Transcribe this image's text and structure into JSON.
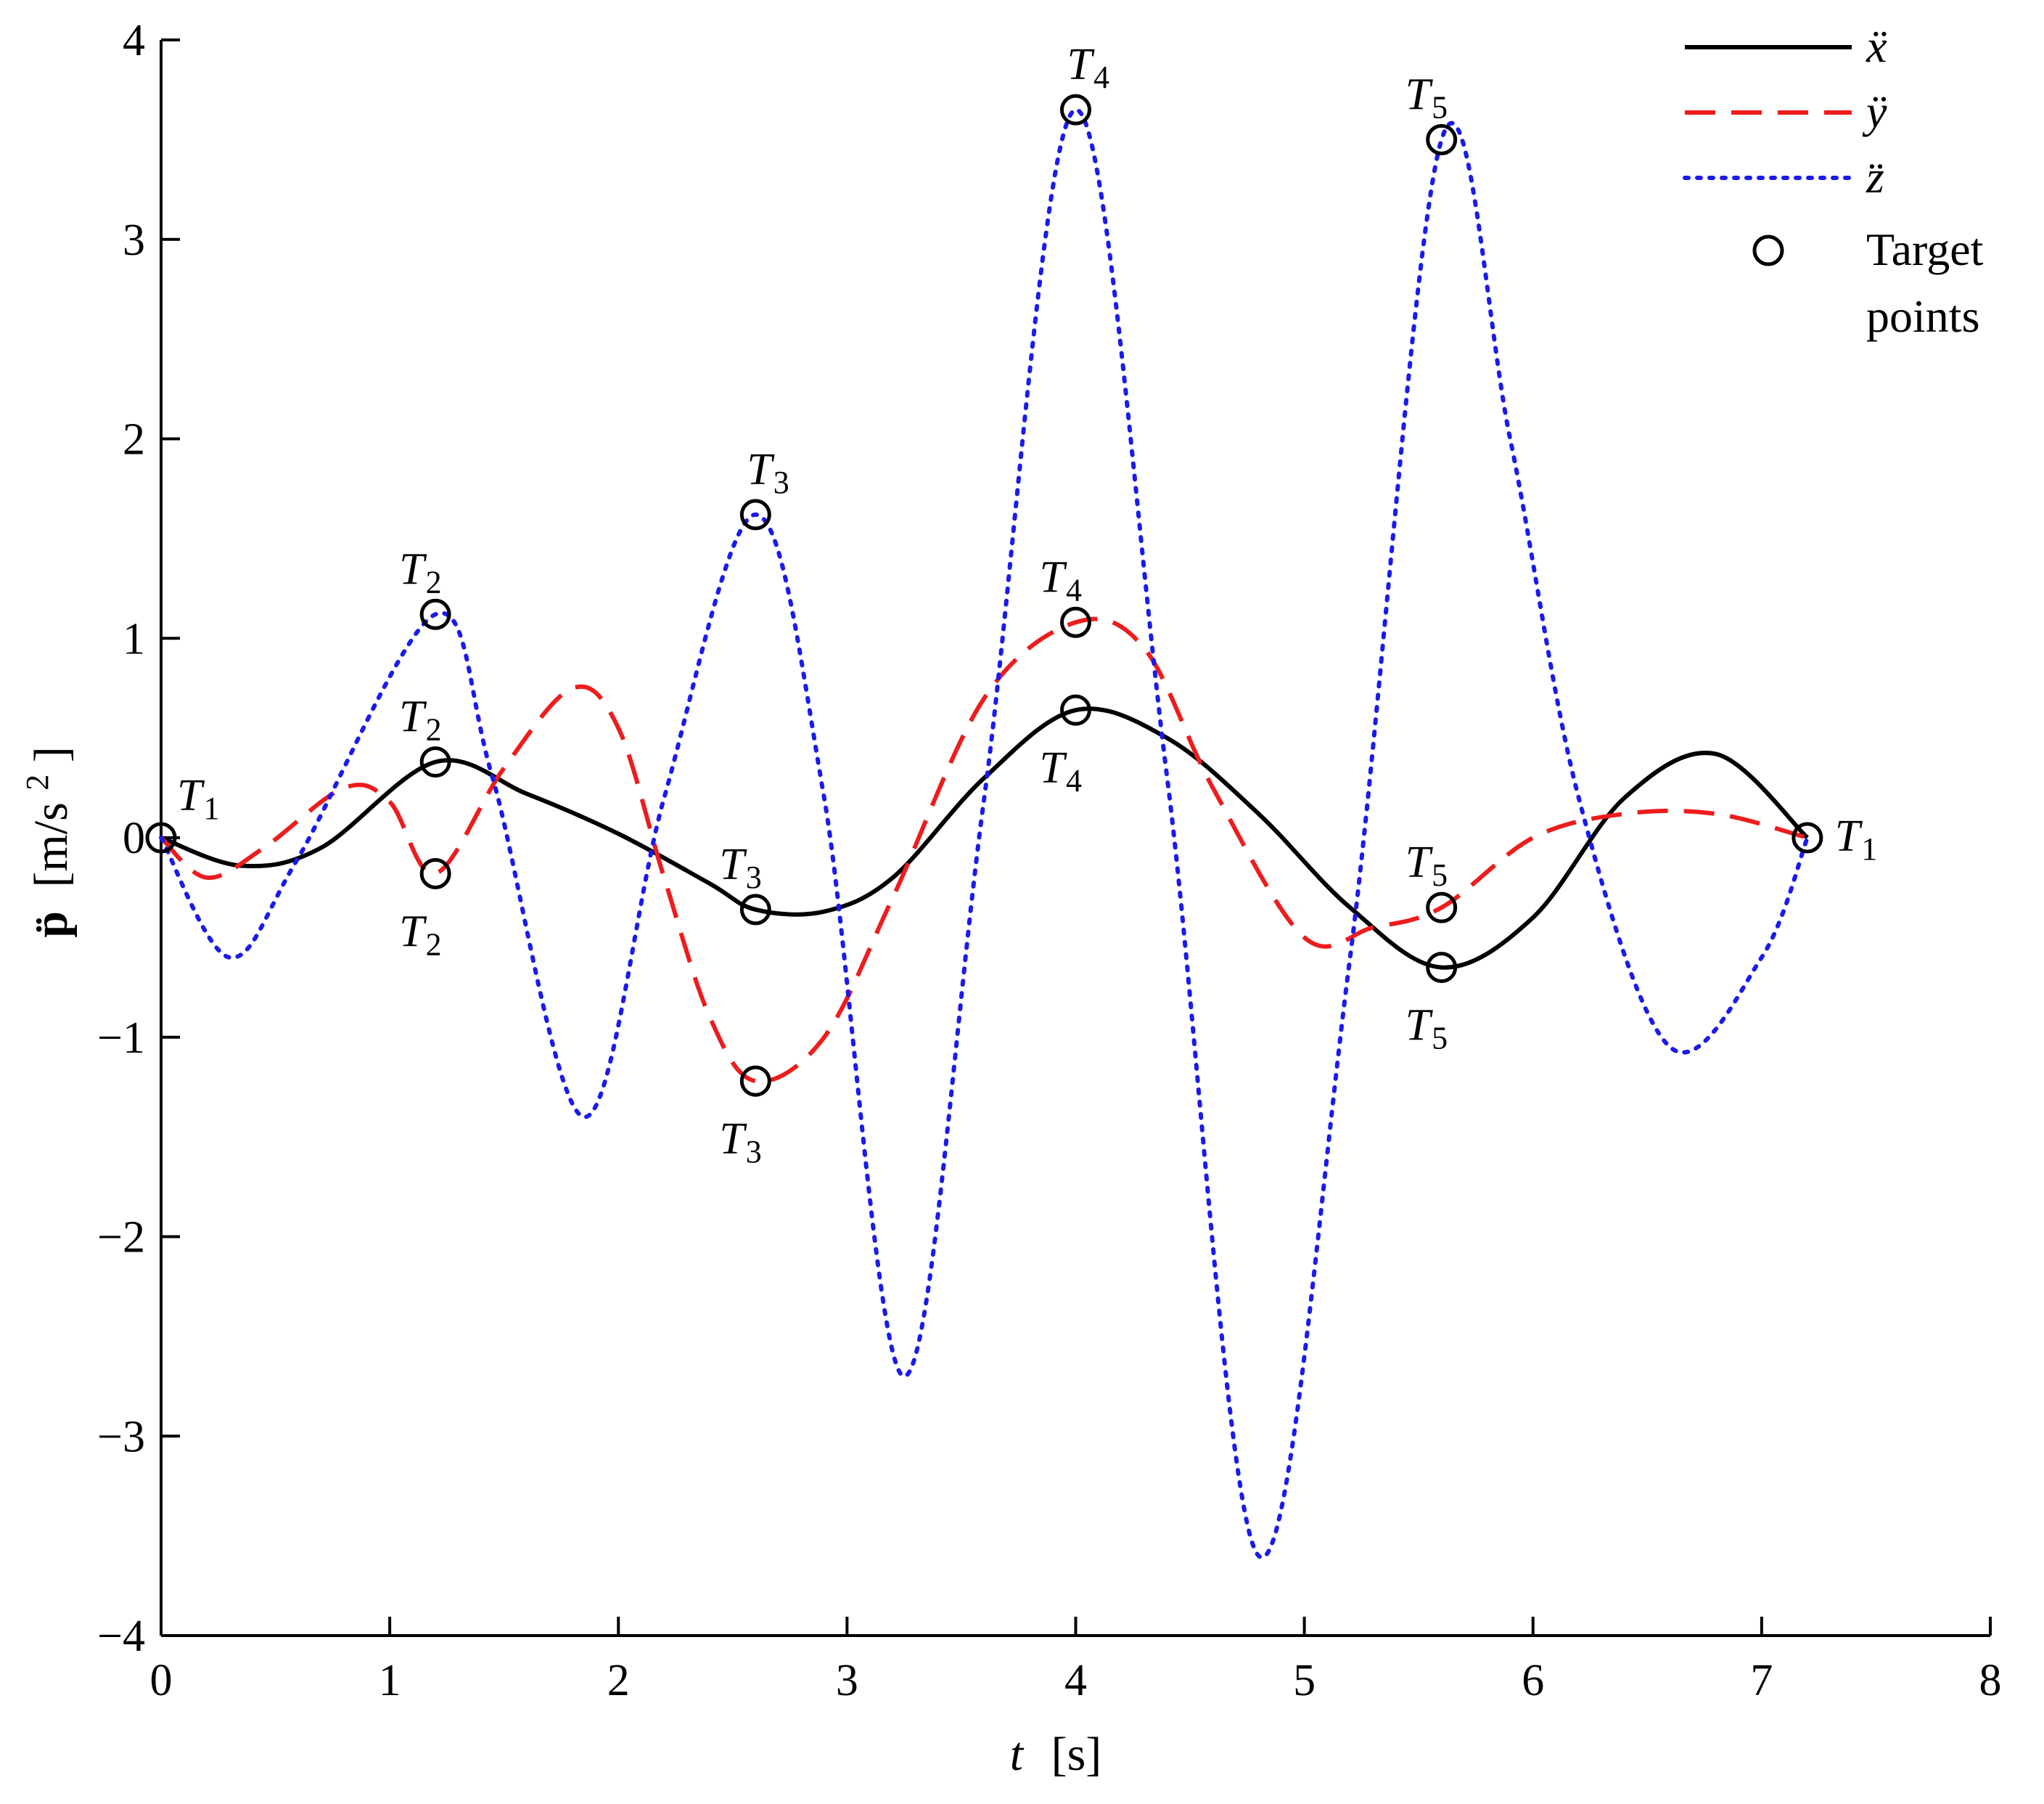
{
  "chart_data": {
    "type": "line",
    "xlabel": {
      "var": "t",
      "unit": "[s]"
    },
    "ylabel": {
      "symbol": "p̈",
      "unit": "[m/s",
      "sup": "2",
      "close": "]"
    },
    "xlim": [
      0,
      8
    ],
    "ylim": [
      -4,
      4
    ],
    "xticks": [
      0,
      1,
      2,
      3,
      4,
      5,
      6,
      7,
      8
    ],
    "yticks": [
      -4,
      -3,
      -2,
      -1,
      0,
      1,
      2,
      3,
      4
    ],
    "xtick_labels": [
      "0",
      "1",
      "2",
      "3",
      "4",
      "5",
      "6",
      "7",
      "8"
    ],
    "ytick_labels": [
      "−4",
      "−3",
      "−2",
      "−1",
      "0",
      "1",
      "2",
      "3",
      "4"
    ],
    "grid": false,
    "legend_position": "top-right",
    "series": [
      {
        "name": "ẍ",
        "color": "#000000",
        "style": "solid",
        "x": [
          0,
          0.35,
          0.7,
          1.2,
          1.6,
          2.0,
          2.4,
          2.6,
          2.9,
          3.2,
          3.6,
          4.0,
          4.4,
          4.8,
          5.2,
          5.6,
          6.0,
          6.4,
          6.8,
          7.2
        ],
        "y": [
          0,
          -0.14,
          -0.05,
          0.38,
          0.22,
          0.02,
          -0.23,
          -0.36,
          -0.37,
          -0.2,
          0.3,
          0.64,
          0.5,
          0.12,
          -0.35,
          -0.65,
          -0.4,
          0.2,
          0.42,
          0.0
        ]
      },
      {
        "name": "ÿ",
        "color": "#ee1c1c",
        "style": "dashed",
        "x": [
          0,
          0.2,
          0.45,
          0.8,
          1.0,
          1.2,
          1.5,
          1.8,
          2.0,
          2.2,
          2.4,
          2.6,
          2.9,
          3.2,
          3.6,
          4.0,
          4.3,
          4.6,
          5.0,
          5.3,
          5.6,
          6.0,
          6.4,
          6.8,
          7.2
        ],
        "y": [
          0,
          -0.2,
          -0.05,
          0.25,
          0.18,
          -0.18,
          0.35,
          0.75,
          0.55,
          -0.2,
          -0.9,
          -1.22,
          -1.0,
          -0.3,
          0.7,
          1.08,
          0.95,
          0.25,
          -0.5,
          -0.45,
          -0.35,
          0.0,
          0.12,
          0.12,
          0.0
        ]
      },
      {
        "name": "z̈",
        "color": "#1a1aee",
        "style": "dotted",
        "x": [
          0,
          0.3,
          0.6,
          1.2,
          1.45,
          1.85,
          2.2,
          2.6,
          2.9,
          3.25,
          3.6,
          4.0,
          4.4,
          4.8,
          5.2,
          5.6,
          5.9,
          6.2,
          6.6,
          7.0,
          7.2
        ],
        "y": [
          0,
          -0.6,
          -0.1,
          1.12,
          0.3,
          -1.4,
          0.2,
          1.62,
          0.2,
          -2.7,
          0.2,
          3.65,
          0.3,
          -3.6,
          -0.6,
          3.5,
          2.0,
          0.2,
          -1.05,
          -0.6,
          0.0
        ]
      }
    ],
    "target_points_legend": [
      "Target",
      "points"
    ],
    "target_points": [
      {
        "x": 0.0,
        "y": 0.0,
        "base": "T",
        "sub": "1",
        "pos": "right-above"
      },
      {
        "x": 7.2,
        "y": 0.0,
        "base": "T",
        "sub": "1",
        "pos": "right"
      },
      {
        "x": 1.2,
        "y": 1.12,
        "base": "T",
        "sub": "2",
        "pos": "above"
      },
      {
        "x": 1.2,
        "y": 0.38,
        "base": "T",
        "sub": "2",
        "pos": "above"
      },
      {
        "x": 1.2,
        "y": -0.18,
        "base": "T",
        "sub": "2",
        "pos": "below"
      },
      {
        "x": 2.6,
        "y": 1.62,
        "base": "T",
        "sub": "3",
        "pos": "above-right"
      },
      {
        "x": 2.6,
        "y": -0.36,
        "base": "T",
        "sub": "3",
        "pos": "above"
      },
      {
        "x": 2.6,
        "y": -1.22,
        "base": "T",
        "sub": "3",
        "pos": "below"
      },
      {
        "x": 4.0,
        "y": 3.65,
        "base": "T",
        "sub": "4",
        "pos": "above-right"
      },
      {
        "x": 4.0,
        "y": 1.08,
        "base": "T",
        "sub": "4",
        "pos": "above"
      },
      {
        "x": 4.0,
        "y": 0.64,
        "base": "T",
        "sub": "4",
        "pos": "below"
      },
      {
        "x": 5.6,
        "y": 3.5,
        "base": "T",
        "sub": "5",
        "pos": "above"
      },
      {
        "x": 5.6,
        "y": -0.35,
        "base": "T",
        "sub": "5",
        "pos": "above"
      },
      {
        "x": 5.6,
        "y": -0.65,
        "base": "T",
        "sub": "5",
        "pos": "below"
      }
    ]
  }
}
